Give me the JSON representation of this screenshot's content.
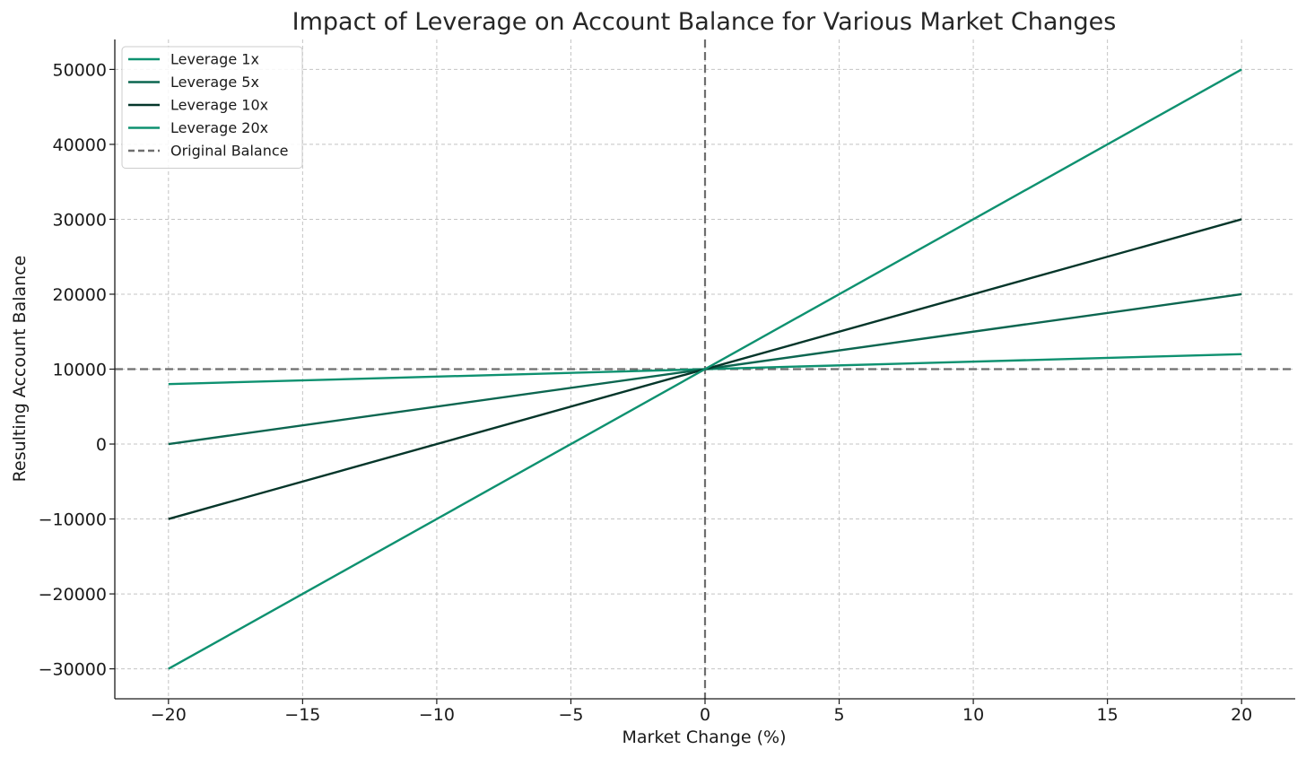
{
  "chart_data": {
    "type": "line",
    "title": "Impact of Leverage on Account Balance for Various Market Changes",
    "xlabel": "Market Change (%)",
    "ylabel": "Resulting Account Balance",
    "xlim": [
      -22,
      22
    ],
    "ylim": [
      -34000,
      54000
    ],
    "xticks": [
      -20,
      -15,
      -10,
      -5,
      0,
      5,
      10,
      15,
      20
    ],
    "yticks": [
      -30000,
      -20000,
      -10000,
      0,
      10000,
      20000,
      30000,
      40000,
      50000
    ],
    "xtick_labels": [
      "−20",
      "−15",
      "−10",
      "−5",
      "0",
      "5",
      "10",
      "15",
      "20"
    ],
    "ytick_labels": [
      "−30000",
      "−20000",
      "−10000",
      "0",
      "10000",
      "20000",
      "30000",
      "40000",
      "50000"
    ],
    "grid": true,
    "legend_position": "top-left",
    "x": [
      -20,
      20
    ],
    "series": [
      {
        "name": "Leverage 1x",
        "color": "#0e9170",
        "dashed": false,
        "x": [
          -20,
          20
        ],
        "values": [
          8000,
          12000
        ]
      },
      {
        "name": "Leverage 5x",
        "color": "#0c6650",
        "dashed": false,
        "x": [
          -20,
          20
        ],
        "values": [
          0,
          20000
        ]
      },
      {
        "name": "Leverage 10x",
        "color": "#05362a",
        "dashed": false,
        "x": [
          -20,
          20
        ],
        "values": [
          -10000,
          30000
        ]
      },
      {
        "name": "Leverage 20x",
        "color": "#0e9170",
        "dashed": false,
        "x": [
          -20,
          20
        ],
        "values": [
          -30000,
          50000
        ]
      }
    ],
    "reference_lines": [
      {
        "name": "Original Balance",
        "orientation": "horizontal",
        "value": 10000,
        "color": "#6e6e6e",
        "dashed": true,
        "in_legend": true
      },
      {
        "orientation": "vertical",
        "value": 0,
        "color": "#6e6e6e",
        "dashed": true,
        "in_legend": false
      }
    ]
  }
}
